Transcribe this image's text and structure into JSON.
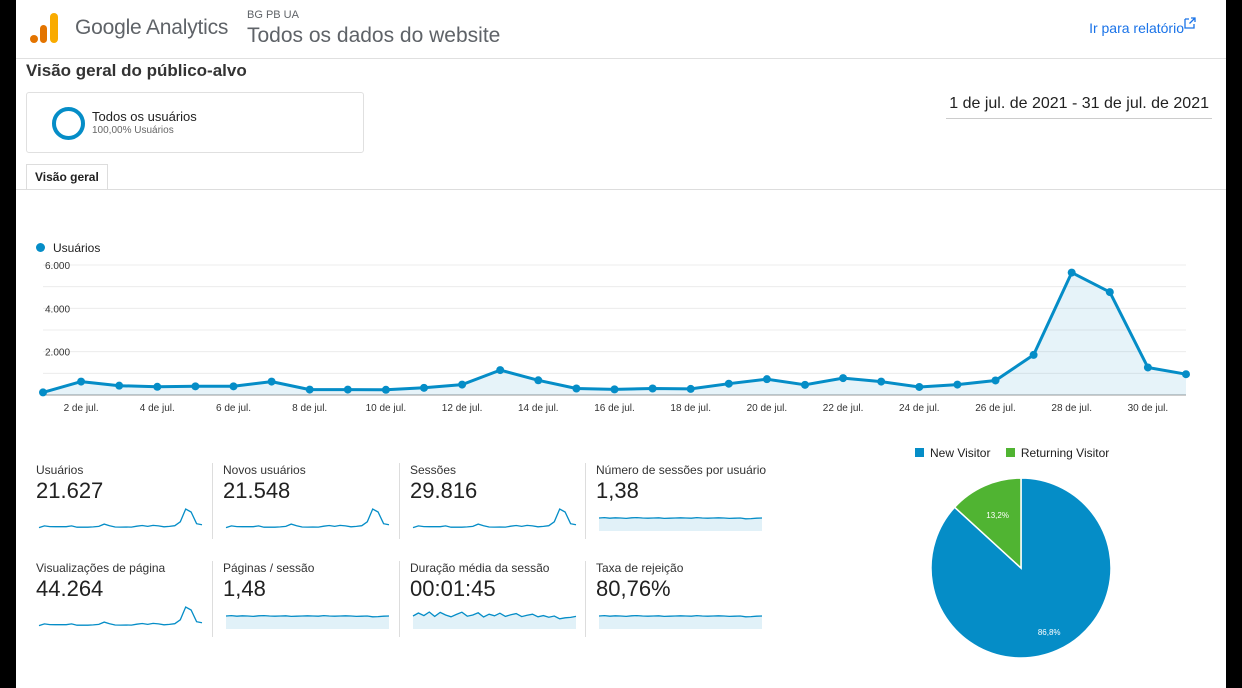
{
  "header": {
    "brand": "Google Analytics",
    "account_path": "BG PB UA",
    "view_name": "Todos os dados do website",
    "report_link": "Ir para relatório"
  },
  "page_title": "Visão geral do público-alvo",
  "segment": {
    "name": "Todos os usuários",
    "percentage": "100,00% Usuários"
  },
  "date_range": "1 de jul. de 2021 - 31 de jul. de 2021",
  "tabs": [
    {
      "label": "Visão geral"
    }
  ],
  "colors": {
    "accent": "#058dc7",
    "new_visitor": "#058dc7",
    "returning_visitor": "#50b432"
  },
  "chart_data": [
    {
      "type": "area",
      "series": [
        {
          "name": "Usuários",
          "values": [
            120,
            620,
            430,
            380,
            400,
            400,
            620,
            250,
            250,
            240,
            330,
            480,
            1150,
            680,
            300,
            260,
            300,
            280,
            520,
            730,
            470,
            780,
            620,
            370,
            480,
            670,
            1850,
            5650,
            4750,
            1270,
            960
          ]
        }
      ],
      "x": [
        1,
        2,
        3,
        4,
        5,
        6,
        7,
        8,
        9,
        10,
        11,
        12,
        13,
        14,
        15,
        16,
        17,
        18,
        19,
        20,
        21,
        22,
        23,
        24,
        25,
        26,
        27,
        28,
        29,
        30,
        31
      ],
      "x_tick_labels": [
        "2 de jul.",
        "4 de jul.",
        "6 de jul.",
        "8 de jul.",
        "10 de jul.",
        "12 de jul.",
        "14 de jul.",
        "16 de jul.",
        "18 de jul.",
        "20 de jul.",
        "22 de jul.",
        "24 de jul.",
        "26 de jul.",
        "28 de jul.",
        "30 de jul."
      ],
      "x_tick_days": [
        2,
        4,
        6,
        8,
        10,
        12,
        14,
        16,
        18,
        20,
        22,
        24,
        26,
        28,
        30
      ],
      "y_ticks": [
        2000,
        4000,
        6000
      ],
      "y_tick_labels": [
        "2.000",
        "4.000",
        "6.000"
      ],
      "ylim": [
        0,
        6000
      ],
      "legend": "top-left",
      "grid": true
    },
    {
      "type": "pie",
      "categories": [
        "New Visitor",
        "Returning Visitor"
      ],
      "values": [
        86.8,
        13.2
      ],
      "data_labels": [
        "86,8%",
        "13,2%"
      ],
      "legend": "top"
    }
  ],
  "metrics": [
    {
      "label": "Usuários",
      "value": "21.627",
      "spark": "users"
    },
    {
      "label": "Novos usuários",
      "value": "21.548",
      "spark": "users"
    },
    {
      "label": "Sessões",
      "value": "29.816",
      "spark": "users"
    },
    {
      "label": "Número de sessões por usuário",
      "value": "1,38",
      "spark": "flat"
    },
    {
      "label": "Visualizações de página",
      "value": "44.264",
      "spark": "users"
    },
    {
      "label": "Páginas / sessão",
      "value": "1,48",
      "spark": "flat"
    },
    {
      "label": "Duração média da sessão",
      "value": "00:01:45",
      "spark": "wavy"
    },
    {
      "label": "Taxa de rejeição",
      "value": "80,76%",
      "spark": "flat"
    }
  ]
}
